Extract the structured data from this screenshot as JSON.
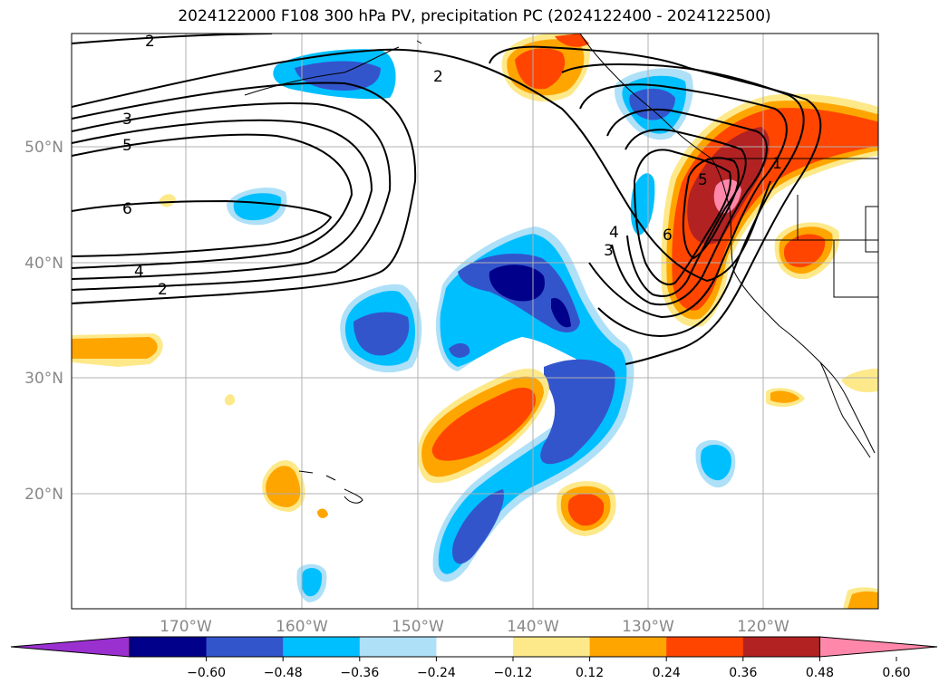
{
  "title": "2024122000 F108 300 hPa PV, precipitation PC (2024122400 - 2024122500)",
  "map": {
    "lon_labels": [
      "170°W",
      "160°W",
      "150°W",
      "140°W",
      "130°W",
      "120°W"
    ],
    "lat_labels": [
      "50°N",
      "40°N",
      "30°N",
      "20°N"
    ],
    "pv_contour_labels": [
      "2",
      "3",
      "5",
      "6",
      "4",
      "2",
      "2",
      "4",
      "3",
      "6",
      "5",
      "1"
    ]
  },
  "colorbar": {
    "tick_labels": [
      "−0.60",
      "−0.48",
      "−0.36",
      "−0.24",
      "−0.12",
      "0.12",
      "0.24",
      "0.36",
      "0.48",
      "0.60"
    ],
    "colors": [
      "#9b30d0",
      "#00008b",
      "#3355cc",
      "#00bfff",
      "#aee0f8",
      "#ffffff",
      "#fde98a",
      "#ffa500",
      "#ff4500",
      "#b22222",
      "#ff88aa"
    ]
  },
  "colors": {
    "neg_036": "#3355cc",
    "neg_024": "#00bfff",
    "neg_012": "#aee0f8",
    "neg_048": "#00008b",
    "pos_012": "#fde98a",
    "pos_024": "#ffa500",
    "pos_036": "#ff4500",
    "pos_048": "#b22222",
    "pos_060": "#ff88aa"
  }
}
